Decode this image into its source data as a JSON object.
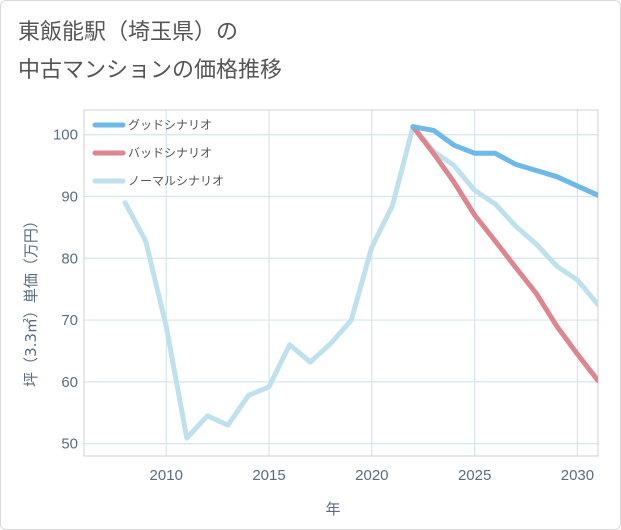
{
  "title": {
    "line1": "東飯能駅（埼玉県）の",
    "line2": "中古マンションの価格推移"
  },
  "chart_data": {
    "type": "line",
    "xlabel": "年",
    "ylabel": "坪（3.3㎡）単価（万円）",
    "xlim": [
      2006,
      2031
    ],
    "ylim": [
      48,
      104
    ],
    "xticks": [
      2010,
      2015,
      2020,
      2025,
      2030
    ],
    "yticks": [
      50,
      60,
      70,
      80,
      90,
      100
    ],
    "grid": true,
    "legend_position": "top-left",
    "series": [
      {
        "name": "グッドシナリオ",
        "color": "#6cb9ea",
        "points": [
          [
            2022,
            101.3
          ],
          [
            2023,
            100.7
          ],
          [
            2024,
            98.3
          ],
          [
            2025,
            97.0
          ],
          [
            2026,
            97.0
          ],
          [
            2027,
            95.2
          ],
          [
            2028,
            94.2
          ],
          [
            2029,
            93.2
          ],
          [
            2030,
            91.7
          ],
          [
            2031,
            90.2
          ]
        ]
      },
      {
        "name": "バッドシナリオ",
        "color": "#dd8690",
        "points": [
          [
            2022,
            101.3
          ],
          [
            2023,
            97.0
          ],
          [
            2024,
            92.3
          ],
          [
            2025,
            87.0
          ],
          [
            2026,
            82.8
          ],
          [
            2027,
            78.5
          ],
          [
            2028,
            74.3
          ],
          [
            2029,
            69.0
          ],
          [
            2030,
            64.5
          ],
          [
            2031,
            60.2
          ]
        ]
      },
      {
        "name": "ノーマルシナリオ",
        "color": "#bfe1ee",
        "points": [
          [
            2008,
            89.0
          ],
          [
            2009,
            82.8
          ],
          [
            2010,
            69.0
          ],
          [
            2011,
            50.9
          ],
          [
            2012,
            54.5
          ],
          [
            2013,
            53.0
          ],
          [
            2014,
            57.8
          ],
          [
            2015,
            59.2
          ],
          [
            2016,
            66.0
          ],
          [
            2017,
            63.2
          ],
          [
            2018,
            66.2
          ],
          [
            2019,
            70.0
          ],
          [
            2020,
            81.8
          ],
          [
            2021,
            88.5
          ],
          [
            2022,
            101.3
          ],
          [
            2023,
            97.3
          ],
          [
            2024,
            95.0
          ],
          [
            2025,
            91.0
          ],
          [
            2026,
            88.8
          ],
          [
            2027,
            85.2
          ],
          [
            2028,
            82.3
          ],
          [
            2029,
            78.7
          ],
          [
            2030,
            76.5
          ],
          [
            2031,
            72.5
          ]
        ]
      }
    ]
  }
}
